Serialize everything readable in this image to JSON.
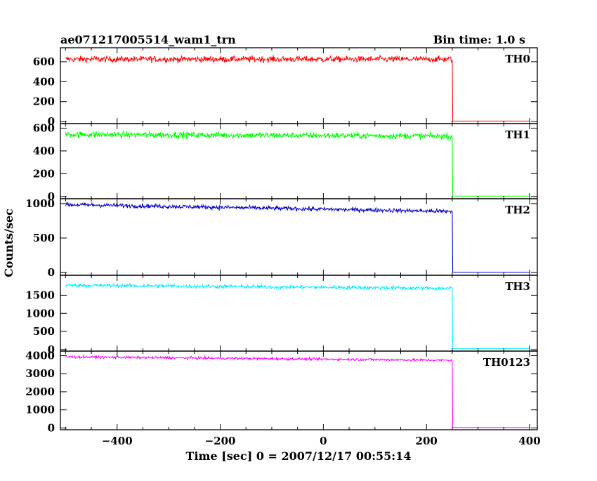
{
  "header": {
    "left_title": "ae071217005514_wam1_trn",
    "right_title": "Bin time: 1.0 s"
  },
  "chart_data": {
    "type": "line",
    "title": "ae071217005514_wam1_trn",
    "subtitle": "Bin time: 1.0 s",
    "xlabel": "Time [sec] 0 = 2007/12/17 00:55:14",
    "ylabel": "Counts/sec",
    "xlim": [
      -510,
      415
    ],
    "x_ticks": [
      -400,
      -200,
      0,
      200,
      400
    ],
    "x_start": -500,
    "x_cutoff": 250,
    "x_end": 400,
    "grid": false,
    "panels": [
      {
        "name": "TH0",
        "color": "#ff0000",
        "ylim": [
          -20,
          740
        ],
        "y_ticks": [
          0,
          200,
          400,
          600
        ],
        "level_start": 625,
        "level_end": 625,
        "noise": 22,
        "after_level": 5
      },
      {
        "name": "TH1",
        "color": "#00ff00",
        "ylim": [
          -20,
          640
        ],
        "y_ticks": [
          0,
          200,
          400,
          600
        ],
        "level_start": 545,
        "level_end": 530,
        "noise": 20,
        "after_level": 3
      },
      {
        "name": "TH2",
        "color": "#0000cc",
        "ylim": [
          -40,
          1070
        ],
        "y_ticks": [
          0,
          500,
          1000
        ],
        "level_start": 985,
        "level_end": 885,
        "noise": 22,
        "after_level": 3
      },
      {
        "name": "TH3",
        "color": "#00eeff",
        "ylim": [
          -40,
          2050
        ],
        "y_ticks": [
          0,
          500,
          1000,
          1500
        ],
        "level_start": 1775,
        "level_end": 1690,
        "noise": 38,
        "after_level": 30
      },
      {
        "name": "TH0123",
        "color": "#ff00ff",
        "ylim": [
          -100,
          4250
        ],
        "y_ticks": [
          0,
          1000,
          2000,
          3000,
          4000
        ],
        "level_start": 3930,
        "level_end": 3740,
        "noise": 50,
        "after_level": 20
      }
    ]
  }
}
